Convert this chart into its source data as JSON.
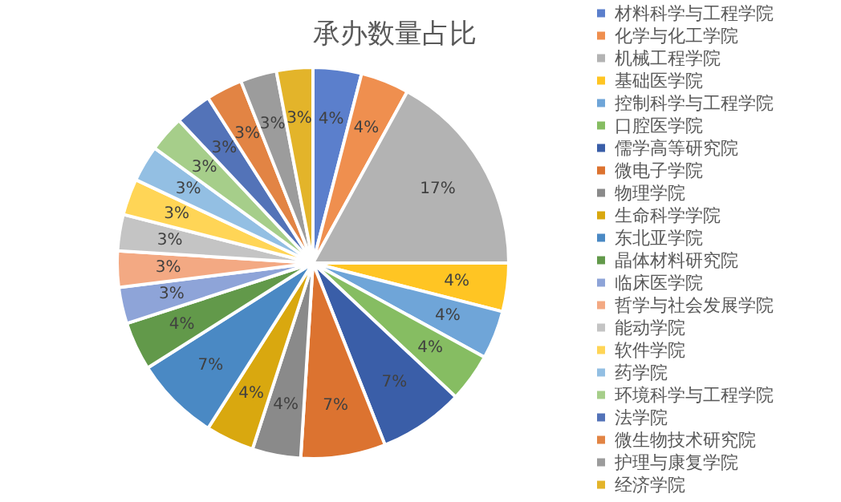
{
  "chart_data": {
    "type": "pie",
    "title": "承办数量占比",
    "categories": [
      "材料科学与工程学院",
      "化学与化工学院",
      "机械工程学院",
      "基础医学院",
      "控制科学与工程学院",
      "口腔医学院",
      "儒学高等研究院",
      "微电子学院",
      "物理学院",
      "生命科学学院",
      "东北亚学院",
      "晶体材料研究院",
      "临床医学院",
      "哲学与社会发展学院",
      "能动学院",
      "软件学院",
      "药学院",
      "环境科学与工程学院",
      "法学院",
      "微生物技术研究院",
      "护理与康复学院",
      "经济学院"
    ],
    "values": [
      4,
      4,
      17,
      4,
      4,
      4,
      7,
      7,
      4,
      4,
      7,
      4,
      3,
      3,
      3,
      3,
      3,
      3,
      3,
      3,
      3,
      3
    ],
    "colors": [
      "#5b7fcc",
      "#ef8f4f",
      "#b3b3b3",
      "#ffc523",
      "#6fa5d8",
      "#86bd62",
      "#3a5ea8",
      "#dc7330",
      "#8a8a8a",
      "#d9a80f",
      "#4a89c4",
      "#62994a",
      "#8ea4d8",
      "#f3a983",
      "#c4c4c4",
      "#ffd556",
      "#93bfe3",
      "#a6ce8a",
      "#5373b8",
      "#e28444",
      "#9c9c9c",
      "#e3b42a"
    ],
    "value_labels": [
      "4%",
      "4%",
      "17%",
      "4%",
      "4%",
      "4%",
      "7%",
      "7%",
      "4%",
      "4%",
      "7%",
      "4%",
      "3%",
      "3%",
      "3%",
      "3%",
      "3%",
      "3%",
      "3%",
      "3%",
      "3%",
      "3%"
    ],
    "legend": "right"
  }
}
